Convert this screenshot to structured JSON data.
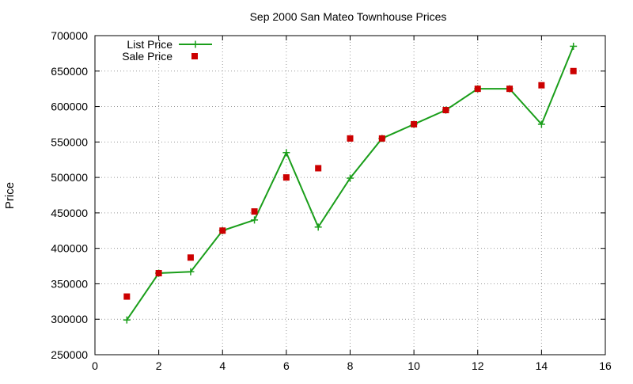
{
  "chart_data": {
    "type": "line",
    "title": "Sep 2000 San Mateo Townhouse Prices",
    "xlabel": "",
    "ylabel": "Price",
    "xlim": [
      0,
      16
    ],
    "ylim": [
      250000,
      700000
    ],
    "xticks": [
      0,
      2,
      4,
      6,
      8,
      10,
      12,
      14,
      16
    ],
    "yticks": [
      250000,
      300000,
      350000,
      400000,
      450000,
      500000,
      550000,
      600000,
      650000,
      700000
    ],
    "grid": true,
    "legend_position": "top-left",
    "series": [
      {
        "name": "List Price",
        "style": "linespoints",
        "marker": "plus",
        "color": "#1a9e1a",
        "x": [
          1,
          2,
          3,
          4,
          5,
          6,
          7,
          8,
          9,
          10,
          11,
          12,
          13,
          14,
          15
        ],
        "y": [
          299000,
          365000,
          367000,
          425000,
          440000,
          535000,
          430000,
          499000,
          555000,
          575000,
          595000,
          625000,
          625000,
          575000,
          685000
        ]
      },
      {
        "name": "Sale Price",
        "style": "points",
        "marker": "square",
        "color": "#cc0000",
        "x": [
          1,
          2,
          3,
          4,
          5,
          6,
          7,
          8,
          9,
          10,
          11,
          12,
          13,
          14,
          15
        ],
        "y": [
          332000,
          365000,
          387000,
          425000,
          452000,
          500000,
          513000,
          555000,
          555000,
          575000,
          595000,
          625000,
          625000,
          630000,
          650000
        ]
      }
    ]
  }
}
